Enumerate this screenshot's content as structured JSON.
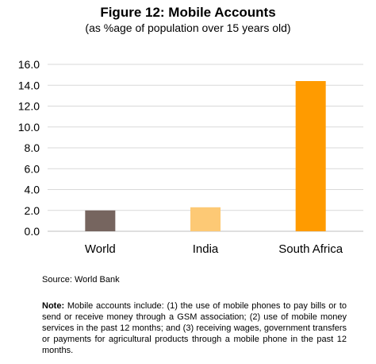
{
  "chart_data": {
    "type": "bar",
    "title": "Figure 12: Mobile Accounts",
    "subtitle": "(as %age of population over 15 years old)",
    "categories": [
      "World",
      "India",
      "South Africa"
    ],
    "values": [
      2.0,
      2.3,
      14.4
    ],
    "colors": [
      "#76655f",
      "#fdc975",
      "#ff9b00"
    ],
    "ylim": [
      0,
      16
    ],
    "yticks": [
      "0.0",
      "2.0",
      "4.0",
      "6.0",
      "8.0",
      "10.0",
      "12.0",
      "14.0",
      "16.0"
    ],
    "grid": true,
    "legend": "none"
  },
  "source": "Source: World Bank",
  "note": {
    "label": "Note:",
    "text": " Mobile accounts include: (1) the use of mobile phones to pay bills or to send or receive money through a GSM association; (2) use of mobile money services in the past 12 months; and (3) receiving wages, government transfers or payments for agricultural products through a mobile phone in the past 12 months."
  }
}
